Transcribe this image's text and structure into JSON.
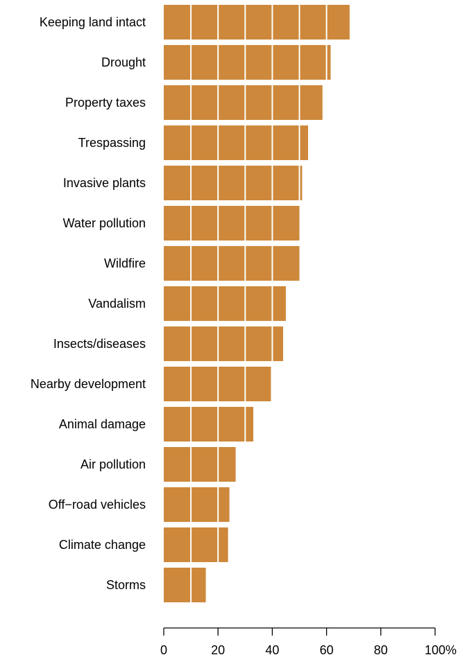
{
  "chart_data": {
    "type": "bar",
    "orientation": "horizontal",
    "categories": [
      "Keeping land intact",
      "Drought",
      "Property taxes",
      "Trespassing",
      "Invasive plants",
      "Water pollution",
      "Wildfire",
      "Vandalism",
      "Insects/diseases",
      "Nearby development",
      "Animal damage",
      "Air pollution",
      "Off−road vehicles",
      "Climate change",
      "Storms"
    ],
    "values": [
      68.5,
      61.5,
      58.5,
      53.2,
      51.0,
      50.0,
      50.0,
      45.0,
      44.0,
      39.5,
      33.0,
      26.5,
      24.2,
      23.7,
      15.5
    ],
    "xlim": [
      0,
      100
    ],
    "xticks": [
      "0",
      "20",
      "40",
      "60",
      "80",
      "100%"
    ],
    "xlabel": "",
    "ylabel": "",
    "title": "",
    "grid": "white vertical lines every 10 drawn over bars",
    "colors": {
      "bar": "#CD883B",
      "gridline": "#FFFFFF",
      "axis": "#000000"
    }
  }
}
